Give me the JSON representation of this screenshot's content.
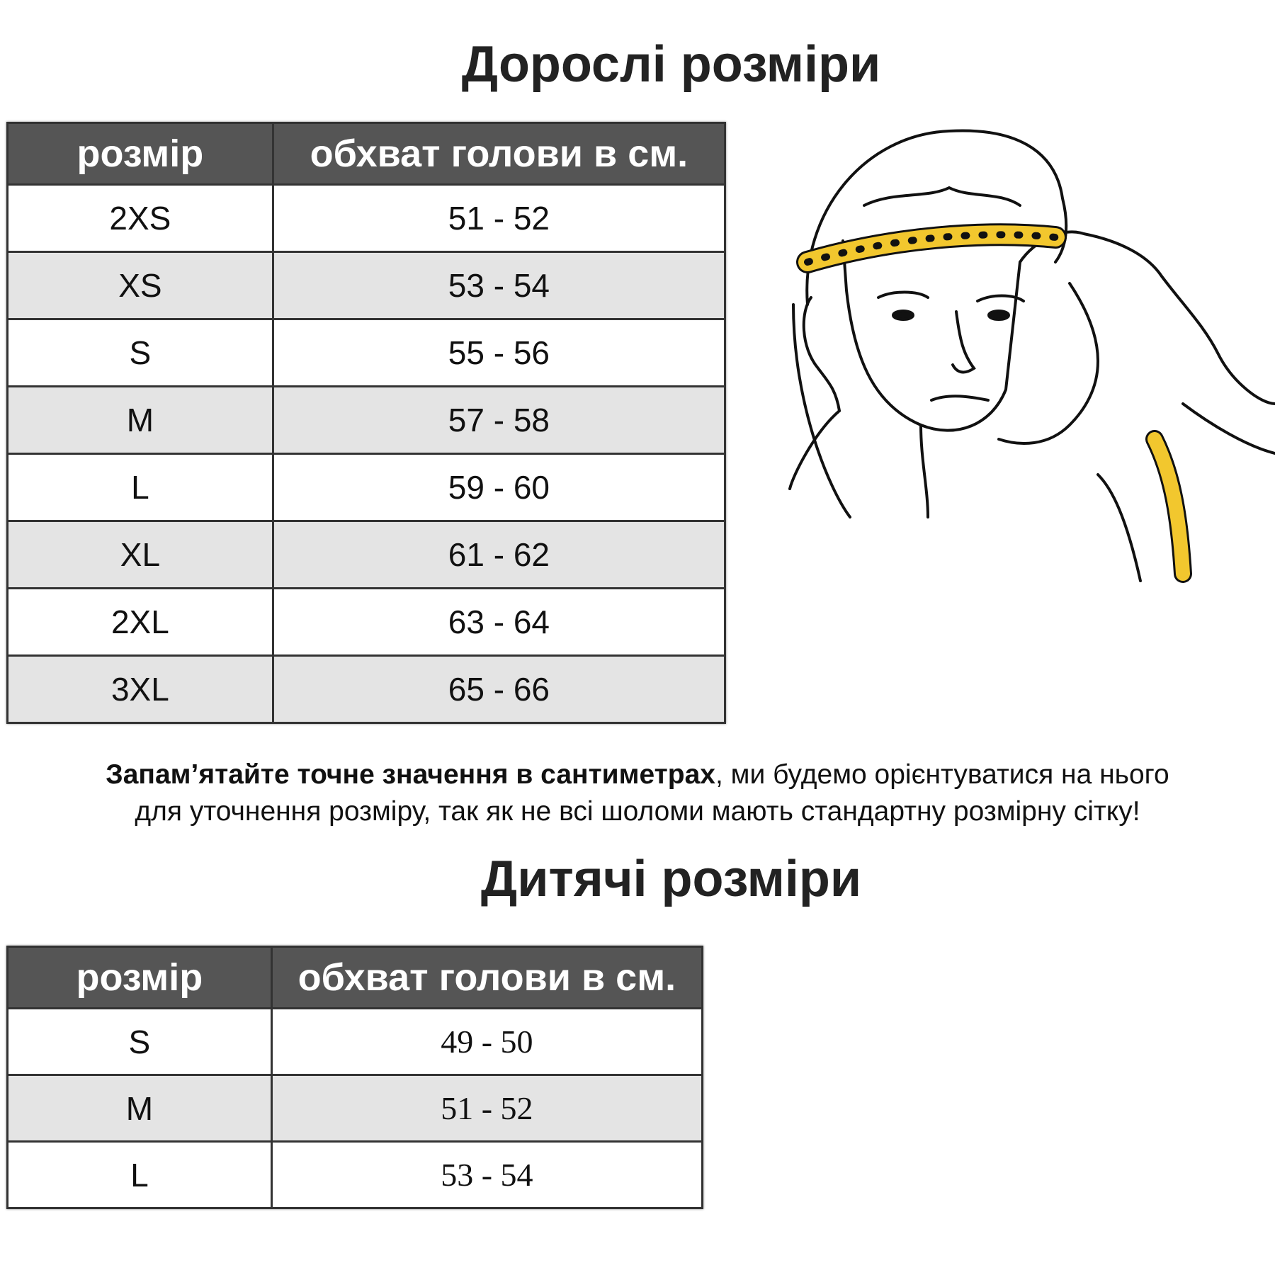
{
  "adult": {
    "title": "Дорослі розміри",
    "headers": [
      "розмір",
      "обхват голови в см."
    ],
    "rows": [
      {
        "size": "2XS",
        "range": "51 - 52"
      },
      {
        "size": "XS",
        "range": "53 - 54"
      },
      {
        "size": "S",
        "range": "55 - 56"
      },
      {
        "size": "M",
        "range": "57 - 58"
      },
      {
        "size": "L",
        "range": "59 - 60"
      },
      {
        "size": "XL",
        "range": "61 - 62"
      },
      {
        "size": "2XL",
        "range": "63 - 64"
      },
      {
        "size": "3XL",
        "range": "65 - 66"
      }
    ]
  },
  "note": {
    "bold": "Запам’ятайте точне значення в сантиметрах",
    "rest_line1": ", ми будемо орієнтуватися на нього",
    "line2": "для уточнення розміру, так як не всі шоломи мають стандартну розмірну сітку!"
  },
  "kids": {
    "title": "Дитячі розміри",
    "headers": [
      "розмір",
      "обхват голови в см."
    ],
    "rows": [
      {
        "size": "S",
        "range": "49 - 50"
      },
      {
        "size": "M",
        "range": "51 - 52"
      },
      {
        "size": "L",
        "range": "53 - 54"
      }
    ]
  },
  "colors": {
    "header_bg": "#555555",
    "alt_row": "#e4e4e4",
    "tape": "#f2c72e"
  },
  "illustration": "head-measuring-tape-icon"
}
